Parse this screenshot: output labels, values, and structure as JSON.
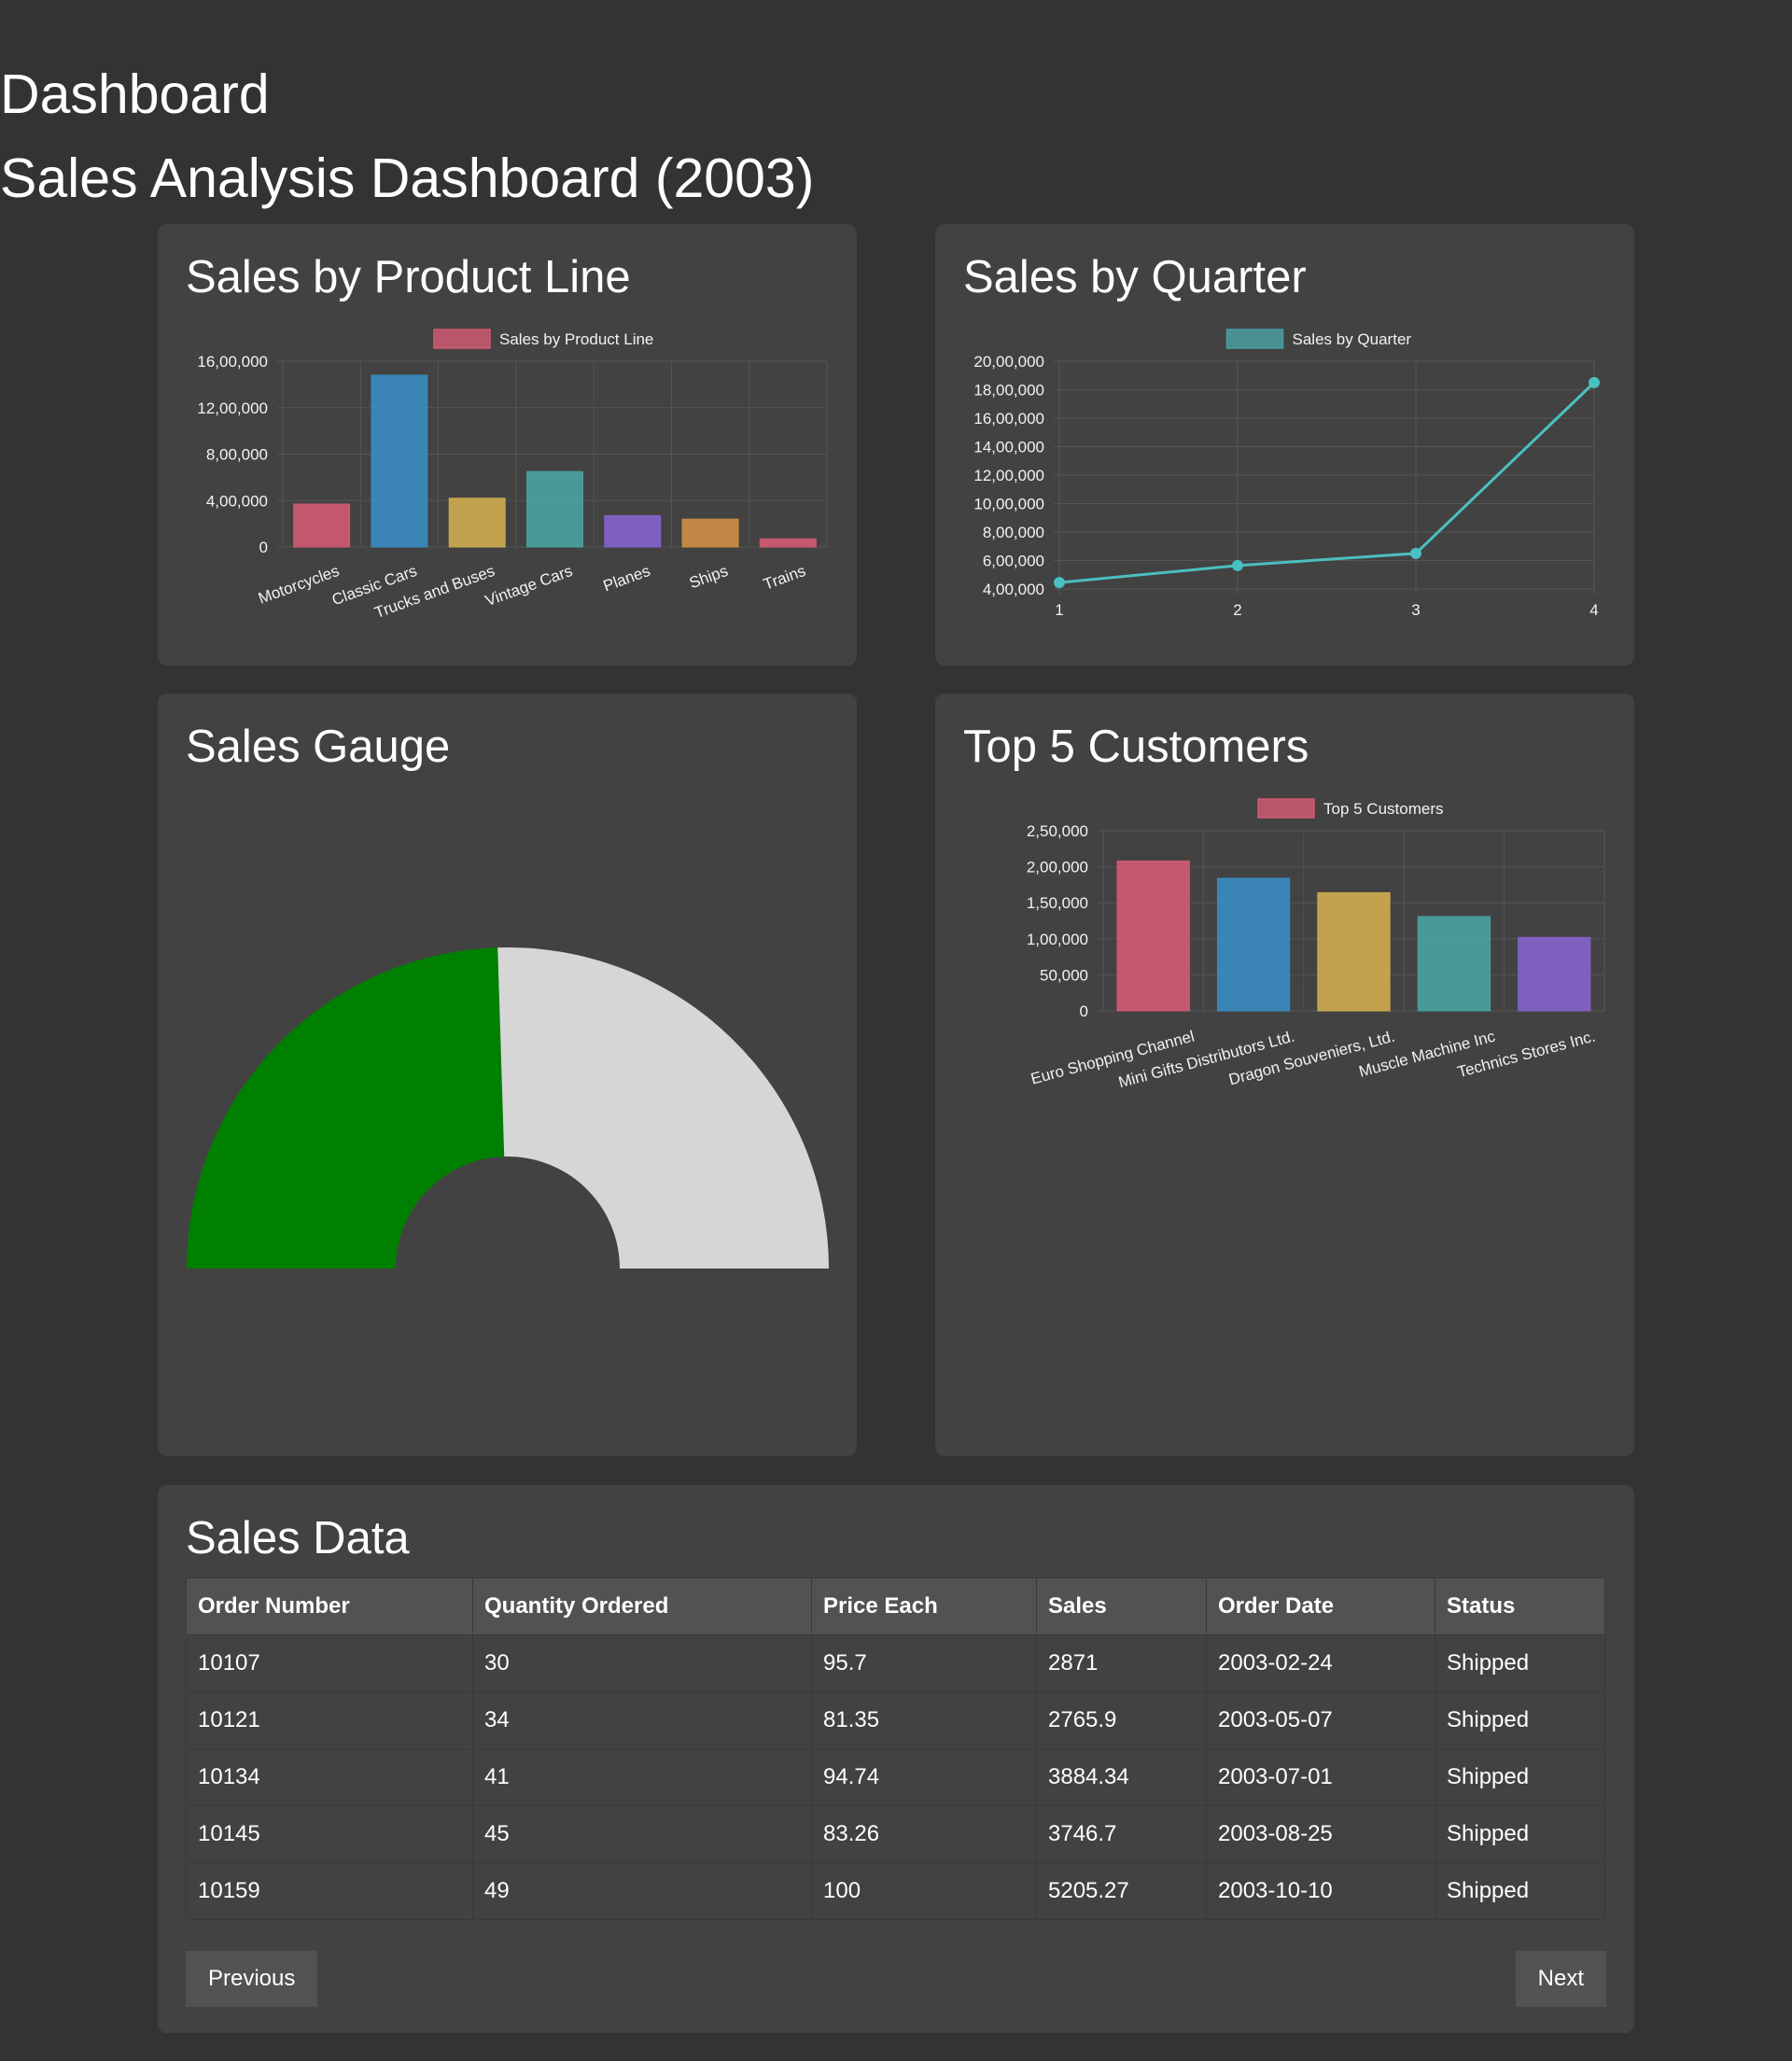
{
  "header": {
    "title": "Dashboard",
    "subtitle": "Sales Analysis Dashboard (2003)"
  },
  "colors": {
    "background": "#333333",
    "card": "#424242",
    "accent_green": "#008000",
    "gauge_rest": "#d6d6d6"
  },
  "panels": {
    "product_line": {
      "title": "Sales by Product Line"
    },
    "quarter": {
      "title": "Sales by Quarter"
    },
    "gauge": {
      "title": "Sales Gauge"
    },
    "customers": {
      "title": "Top 5 Customers"
    },
    "table": {
      "title": "Sales Data"
    }
  },
  "chart_data": [
    {
      "id": "product_line",
      "type": "bar",
      "title": "Sales by Product Line",
      "legend": "Sales by Product Line",
      "categories": [
        "Motorcycles",
        "Classic Cars",
        "Trucks and Buses",
        "Vintage Cars",
        "Planes",
        "Ships",
        "Trains"
      ],
      "values": [
        370000,
        1480000,
        420000,
        650000,
        270000,
        240000,
        70000
      ],
      "ylim": [
        0,
        1600000
      ],
      "yticks": [
        "0",
        "4,00,000",
        "8,00,000",
        "12,00,000",
        "16,00,000"
      ],
      "colors": [
        "#cc5a71",
        "#3a89bd",
        "#c9a84f",
        "#4a9e9e",
        "#8361c7",
        "#c98a46",
        "#cc5a71"
      ]
    },
    {
      "id": "quarter",
      "type": "line",
      "title": "Sales by Quarter",
      "legend": "Sales by Quarter",
      "x": [
        "1",
        "2",
        "3",
        "4"
      ],
      "values": [
        445000,
        565000,
        650000,
        1850000
      ],
      "ylim": [
        400000,
        2000000
      ],
      "yticks": [
        "4,00,000",
        "6,00,000",
        "8,00,000",
        "10,00,000",
        "12,00,000",
        "14,00,000",
        "16,00,000",
        "18,00,000",
        "20,00,000"
      ],
      "color": "#4bc0c0"
    },
    {
      "id": "gauge",
      "type": "pie",
      "title": "Sales Gauge",
      "values": [
        0.49,
        0.51
      ],
      "colors": [
        "#008000",
        "#d6d6d6"
      ]
    },
    {
      "id": "customers",
      "type": "bar",
      "title": "Top 5 Customers",
      "legend": "Top 5 Customers",
      "categories": [
        "Euro Shopping Channel",
        "Mini Gifts Distributors Ltd.",
        "Dragon Souveniers, Ltd.",
        "Muscle Machine Inc",
        "Technics Stores Inc."
      ],
      "values": [
        208000,
        184000,
        164000,
        131000,
        102000
      ],
      "ylim": [
        0,
        250000
      ],
      "yticks": [
        "0",
        "50,000",
        "1,00,000",
        "1,50,000",
        "2,00,000",
        "2,50,000"
      ],
      "colors": [
        "#cc5a71",
        "#3a89bd",
        "#c9a84f",
        "#4a9e9e",
        "#8361c7"
      ]
    }
  ],
  "table": {
    "columns": [
      "Order Number",
      "Quantity Ordered",
      "Price Each",
      "Sales",
      "Order Date",
      "Status"
    ],
    "rows": [
      [
        "10107",
        "30",
        "95.7",
        "2871",
        "2003-02-24",
        "Shipped"
      ],
      [
        "10121",
        "34",
        "81.35",
        "2765.9",
        "2003-05-07",
        "Shipped"
      ],
      [
        "10134",
        "41",
        "94.74",
        "3884.34",
        "2003-07-01",
        "Shipped"
      ],
      [
        "10145",
        "45",
        "83.26",
        "3746.7",
        "2003-08-25",
        "Shipped"
      ],
      [
        "10159",
        "49",
        "100",
        "5205.27",
        "2003-10-10",
        "Shipped"
      ]
    ]
  },
  "pagination": {
    "previous": "Previous",
    "next": "Next"
  }
}
